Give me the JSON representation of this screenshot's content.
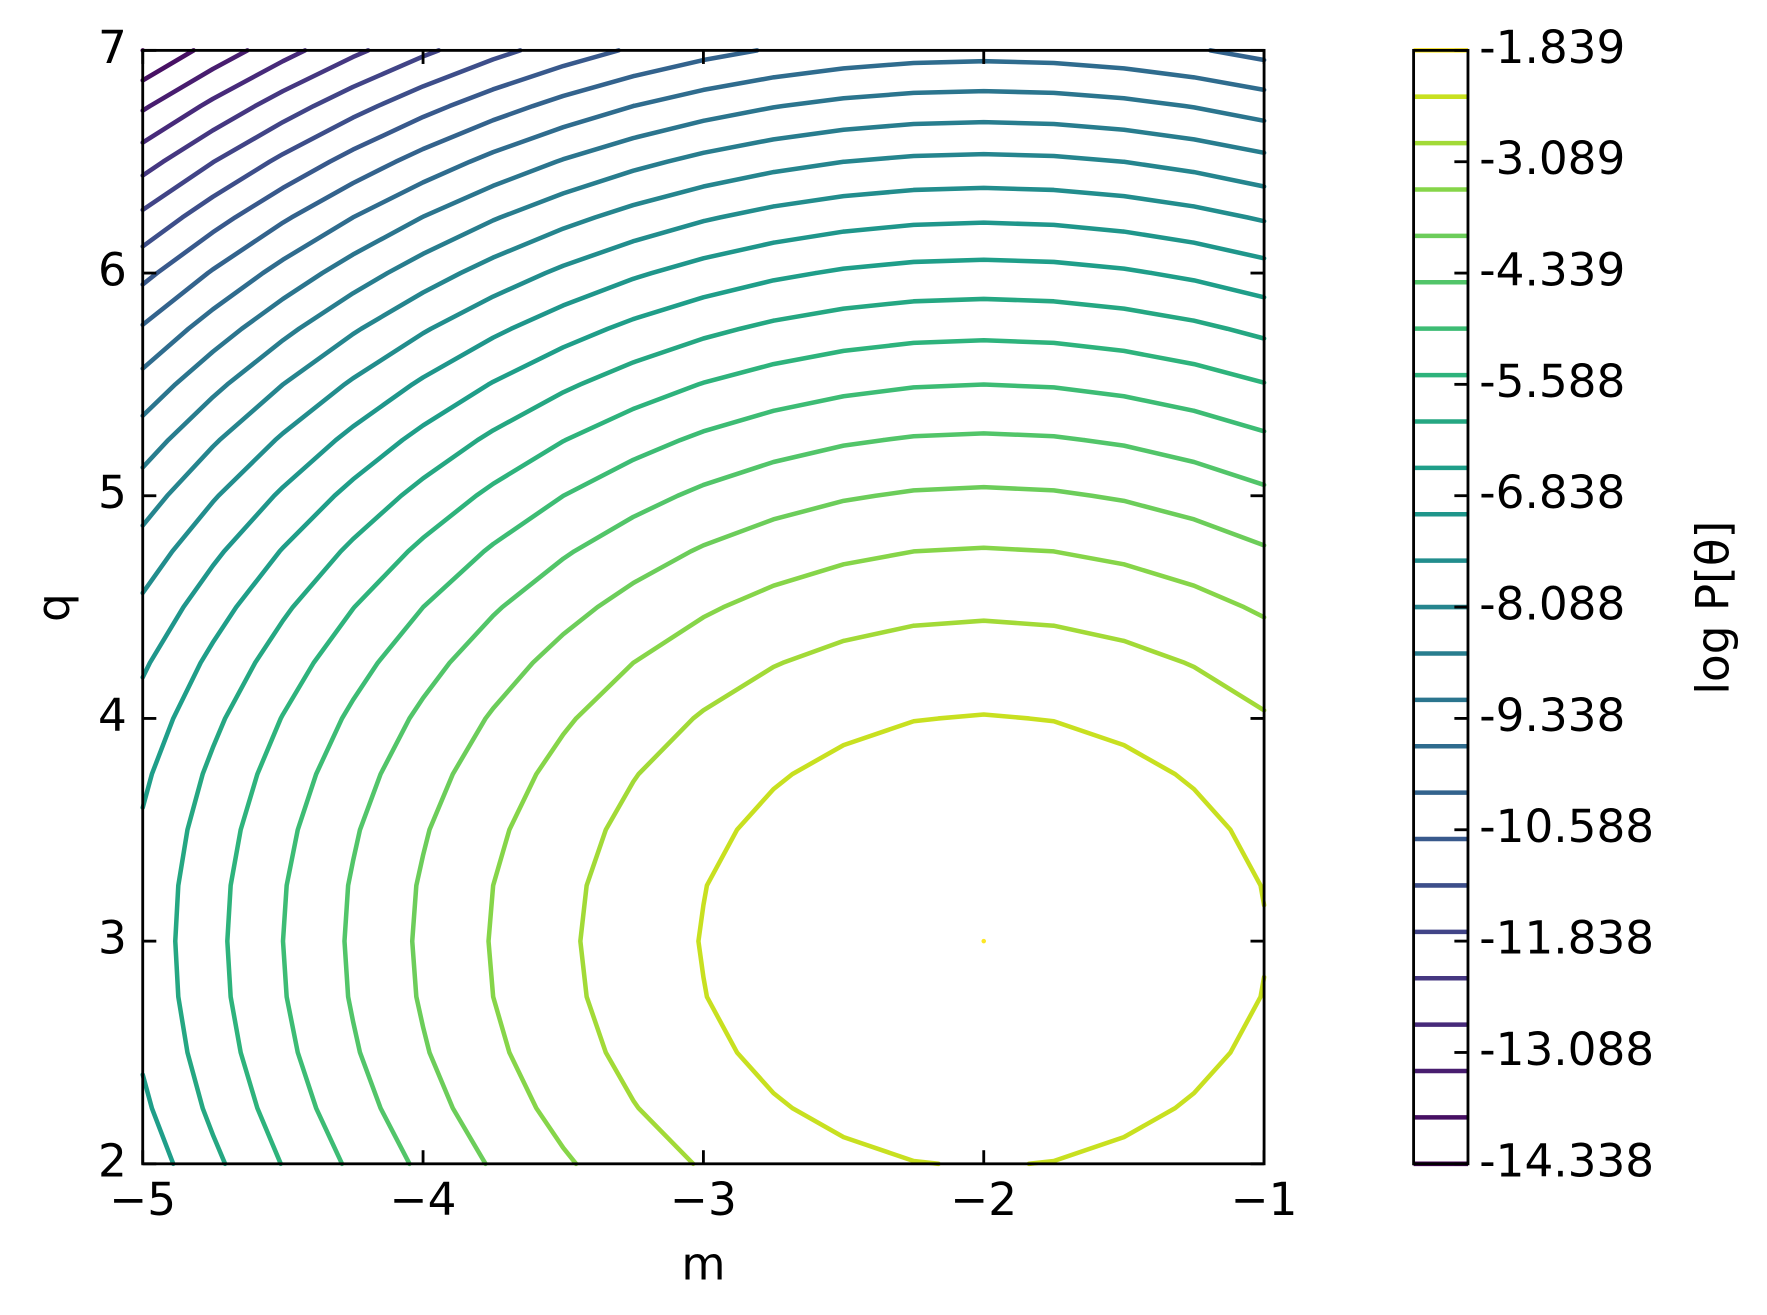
{
  "chart_data": {
    "type": "contour",
    "x_label": "m",
    "y_label": "q",
    "colorbar_label": "log P[θ]",
    "x": [
      -5,
      -4.75,
      -4.5,
      -4.25,
      -4,
      -3.75,
      -3.5,
      -3.25,
      -3,
      -2.75,
      -2.5,
      -2.25,
      -2,
      -1.75,
      -1.5,
      -1.25,
      -1
    ],
    "y": [
      2,
      2.25,
      2.5,
      2.75,
      3,
      3.25,
      3.5,
      3.75,
      4,
      4.25,
      4.5,
      4.75,
      5,
      5.25,
      5.5,
      5.75,
      6,
      6.25,
      6.5,
      6.75,
      7
    ],
    "z": [
      [
        -6.839,
        -6.12,
        -5.464,
        -4.87,
        -4.339,
        -3.87,
        -3.464,
        -3.12,
        -2.839,
        -2.62,
        -2.464,
        -2.37,
        -2.339,
        -2.37,
        -2.464,
        -2.62,
        -2.839
      ],
      [
        -6.62,
        -5.901,
        -5.245,
        -4.651,
        -4.12,
        -3.651,
        -3.245,
        -2.901,
        -2.62,
        -2.401,
        -2.245,
        -2.151,
        -2.12,
        -2.151,
        -2.245,
        -2.401,
        -2.62
      ],
      [
        -6.464,
        -5.745,
        -5.089,
        -4.495,
        -3.964,
        -3.495,
        -3.089,
        -2.745,
        -2.464,
        -2.245,
        -2.089,
        -1.995,
        -1.964,
        -1.995,
        -2.089,
        -2.245,
        -2.464
      ],
      [
        -6.37,
        -5.651,
        -4.995,
        -4.401,
        -3.87,
        -3.401,
        -2.995,
        -2.651,
        -2.37,
        -2.151,
        -1.995,
        -1.901,
        -1.87,
        -1.901,
        -1.995,
        -2.151,
        -2.37
      ],
      [
        -6.339,
        -5.62,
        -4.964,
        -4.37,
        -3.839,
        -3.37,
        -2.964,
        -2.62,
        -2.339,
        -2.12,
        -1.964,
        -1.87,
        -1.839,
        -1.87,
        -1.964,
        -2.12,
        -2.339
      ],
      [
        -6.37,
        -5.651,
        -4.995,
        -4.401,
        -3.87,
        -3.401,
        -2.995,
        -2.651,
        -2.37,
        -2.151,
        -1.995,
        -1.901,
        -1.87,
        -1.901,
        -1.995,
        -2.151,
        -2.37
      ],
      [
        -6.464,
        -5.745,
        -5.089,
        -4.495,
        -3.964,
        -3.495,
        -3.089,
        -2.745,
        -2.464,
        -2.245,
        -2.089,
        -1.995,
        -1.964,
        -1.995,
        -2.089,
        -2.245,
        -2.464
      ],
      [
        -6.62,
        -5.901,
        -5.245,
        -4.651,
        -4.12,
        -3.651,
        -3.245,
        -2.901,
        -2.62,
        -2.401,
        -2.245,
        -2.151,
        -2.12,
        -2.151,
        -2.245,
        -2.401,
        -2.62
      ],
      [
        -6.839,
        -6.12,
        -5.464,
        -4.87,
        -4.339,
        -3.87,
        -3.464,
        -3.12,
        -2.839,
        -2.62,
        -2.464,
        -2.37,
        -2.339,
        -2.37,
        -2.464,
        -2.62,
        -2.839
      ],
      [
        -7.12,
        -6.401,
        -5.745,
        -5.151,
        -4.62,
        -4.151,
        -3.745,
        -3.401,
        -3.12,
        -2.901,
        -2.745,
        -2.651,
        -2.62,
        -2.651,
        -2.745,
        -2.901,
        -3.12
      ],
      [
        -7.464,
        -6.745,
        -6.089,
        -5.495,
        -4.964,
        -4.495,
        -4.089,
        -3.745,
        -3.464,
        -3.245,
        -3.089,
        -2.995,
        -2.964,
        -2.995,
        -3.089,
        -3.245,
        -3.464
      ],
      [
        -7.87,
        -7.151,
        -6.495,
        -5.901,
        -5.37,
        -4.901,
        -4.495,
        -4.151,
        -3.87,
        -3.651,
        -3.495,
        -3.401,
        -3.37,
        -3.401,
        -3.495,
        -3.651,
        -3.87
      ],
      [
        -8.339,
        -7.62,
        -6.964,
        -6.37,
        -5.839,
        -5.37,
        -4.964,
        -4.62,
        -4.339,
        -4.12,
        -3.964,
        -3.87,
        -3.839,
        -3.87,
        -3.964,
        -4.12,
        -4.339
      ],
      [
        -8.87,
        -8.151,
        -7.495,
        -6.901,
        -6.37,
        -5.901,
        -5.495,
        -5.151,
        -4.87,
        -4.651,
        -4.495,
        -4.401,
        -4.37,
        -4.401,
        -4.495,
        -4.651,
        -4.87
      ],
      [
        -9.464,
        -8.745,
        -8.089,
        -7.495,
        -6.964,
        -6.495,
        -6.089,
        -5.745,
        -5.464,
        -5.245,
        -5.089,
        -4.995,
        -4.964,
        -4.995,
        -5.089,
        -5.245,
        -5.464
      ],
      [
        -10.12,
        -9.401,
        -8.745,
        -8.151,
        -7.62,
        -7.151,
        -6.745,
        -6.401,
        -6.12,
        -5.901,
        -5.745,
        -5.651,
        -5.62,
        -5.651,
        -5.745,
        -5.901,
        -6.12
      ],
      [
        -10.839,
        -10.12,
        -9.464,
        -8.87,
        -8.339,
        -7.87,
        -7.464,
        -7.12,
        -6.839,
        -6.62,
        -6.464,
        -6.37,
        -6.339,
        -6.37,
        -6.464,
        -6.62,
        -6.839
      ],
      [
        -11.62,
        -10.901,
        -10.245,
        -9.651,
        -9.12,
        -8.651,
        -8.245,
        -7.901,
        -7.62,
        -7.401,
        -7.245,
        -7.151,
        -7.12,
        -7.151,
        -7.245,
        -7.401,
        -7.62
      ],
      [
        -12.464,
        -11.745,
        -11.089,
        -10.495,
        -9.964,
        -9.495,
        -9.089,
        -8.745,
        -8.464,
        -8.245,
        -8.089,
        -7.995,
        -7.964,
        -7.995,
        -8.089,
        -8.245,
        -8.464
      ],
      [
        -13.37,
        -12.651,
        -11.995,
        -11.401,
        -10.87,
        -10.401,
        -9.995,
        -9.651,
        -9.37,
        -9.151,
        -8.995,
        -8.901,
        -8.87,
        -8.901,
        -8.995,
        -9.151,
        -9.37
      ],
      [
        -14.339,
        -13.62,
        -12.964,
        -12.37,
        -11.839,
        -11.37,
        -10.964,
        -10.62,
        -10.339,
        -10.12,
        -9.964,
        -9.87,
        -9.839,
        -9.87,
        -9.964,
        -10.12,
        -10.339
      ]
    ],
    "levels": [
      -14.338,
      -13.817,
      -13.296,
      -12.776,
      -12.255,
      -11.734,
      -11.213,
      -10.692,
      -10.171,
      -9.651,
      -9.13,
      -8.609,
      -8.088,
      -7.567,
      -7.046,
      -6.526,
      -6.005,
      -5.484,
      -4.963,
      -4.442,
      -3.921,
      -3.401,
      -2.88,
      -2.359,
      -1.839
    ],
    "colors": [
      "#440154",
      "#471063",
      "#481d6f",
      "#472a7a",
      "#453781",
      "#414487",
      "#3d4e8a",
      "#38598c",
      "#33638d",
      "#2f6c8e",
      "#2b758e",
      "#287d8e",
      "#25858e",
      "#228d8d",
      "#1f968b",
      "#1f9e89",
      "#25a782",
      "#2eb37c",
      "#3dbc74",
      "#52c569",
      "#6ccd5a",
      "#86d549",
      "#a2da37",
      "#c8e020",
      "#fde725"
    ],
    "xlim": [
      -5,
      -1
    ],
    "xticks": [
      {
        "value": -5,
        "label": "−5"
      },
      {
        "value": -4,
        "label": "−4"
      },
      {
        "value": -3,
        "label": "−3"
      },
      {
        "value": -2,
        "label": "−2"
      },
      {
        "value": -1,
        "label": "−1"
      }
    ],
    "ylim": [
      2,
      7
    ],
    "yticks": [
      2,
      3,
      4,
      5,
      6,
      7
    ],
    "colorbar_lim": [
      -14.338,
      -1.839
    ],
    "colorbar_ticks": [
      -1.839,
      -3.089,
      -4.339,
      -5.588,
      -6.838,
      -8.088,
      -9.338,
      -10.588,
      -11.838,
      -13.088,
      -14.338
    ]
  }
}
